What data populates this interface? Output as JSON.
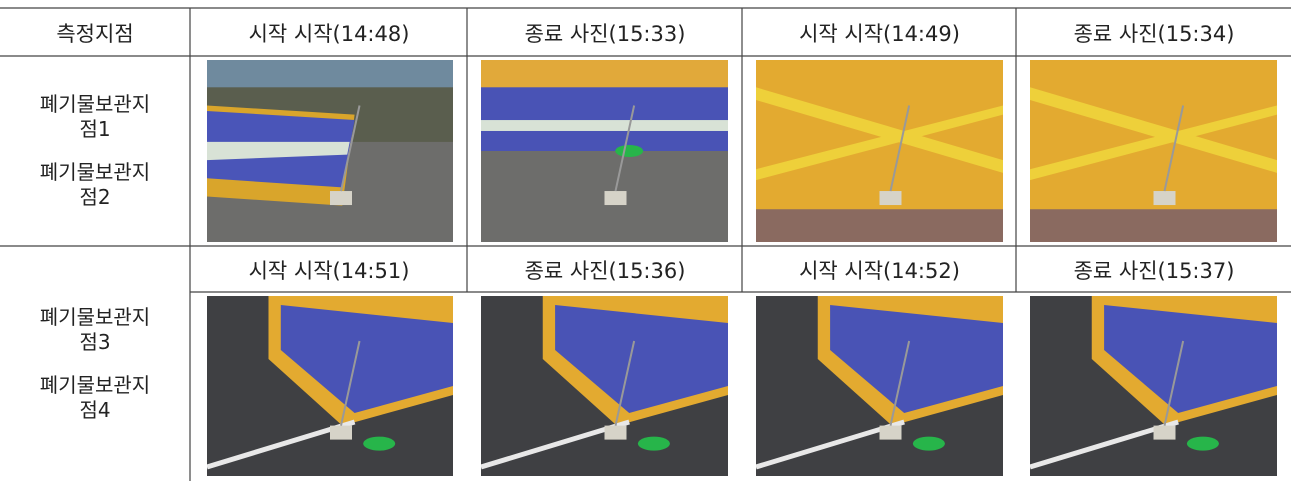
{
  "table": {
    "header": [
      "측정지점",
      "시작 시작(14:48)",
      "종료 사진(15:33)",
      "시작 시작(14:49)",
      "종료 사진(15:34)"
    ],
    "rows": [
      {
        "labels": [
          "폐기물보관지점1",
          "폐기물보관지점2"
        ]
      },
      {
        "subheader": [
          "시작 시작(14:51)",
          "종료 사진(15:36)",
          "시작 시작(14:52)",
          "종료 사진(15:37)"
        ],
        "labels": [
          "폐기물보관지점3",
          "폐기물보관지점4"
        ]
      }
    ]
  }
}
